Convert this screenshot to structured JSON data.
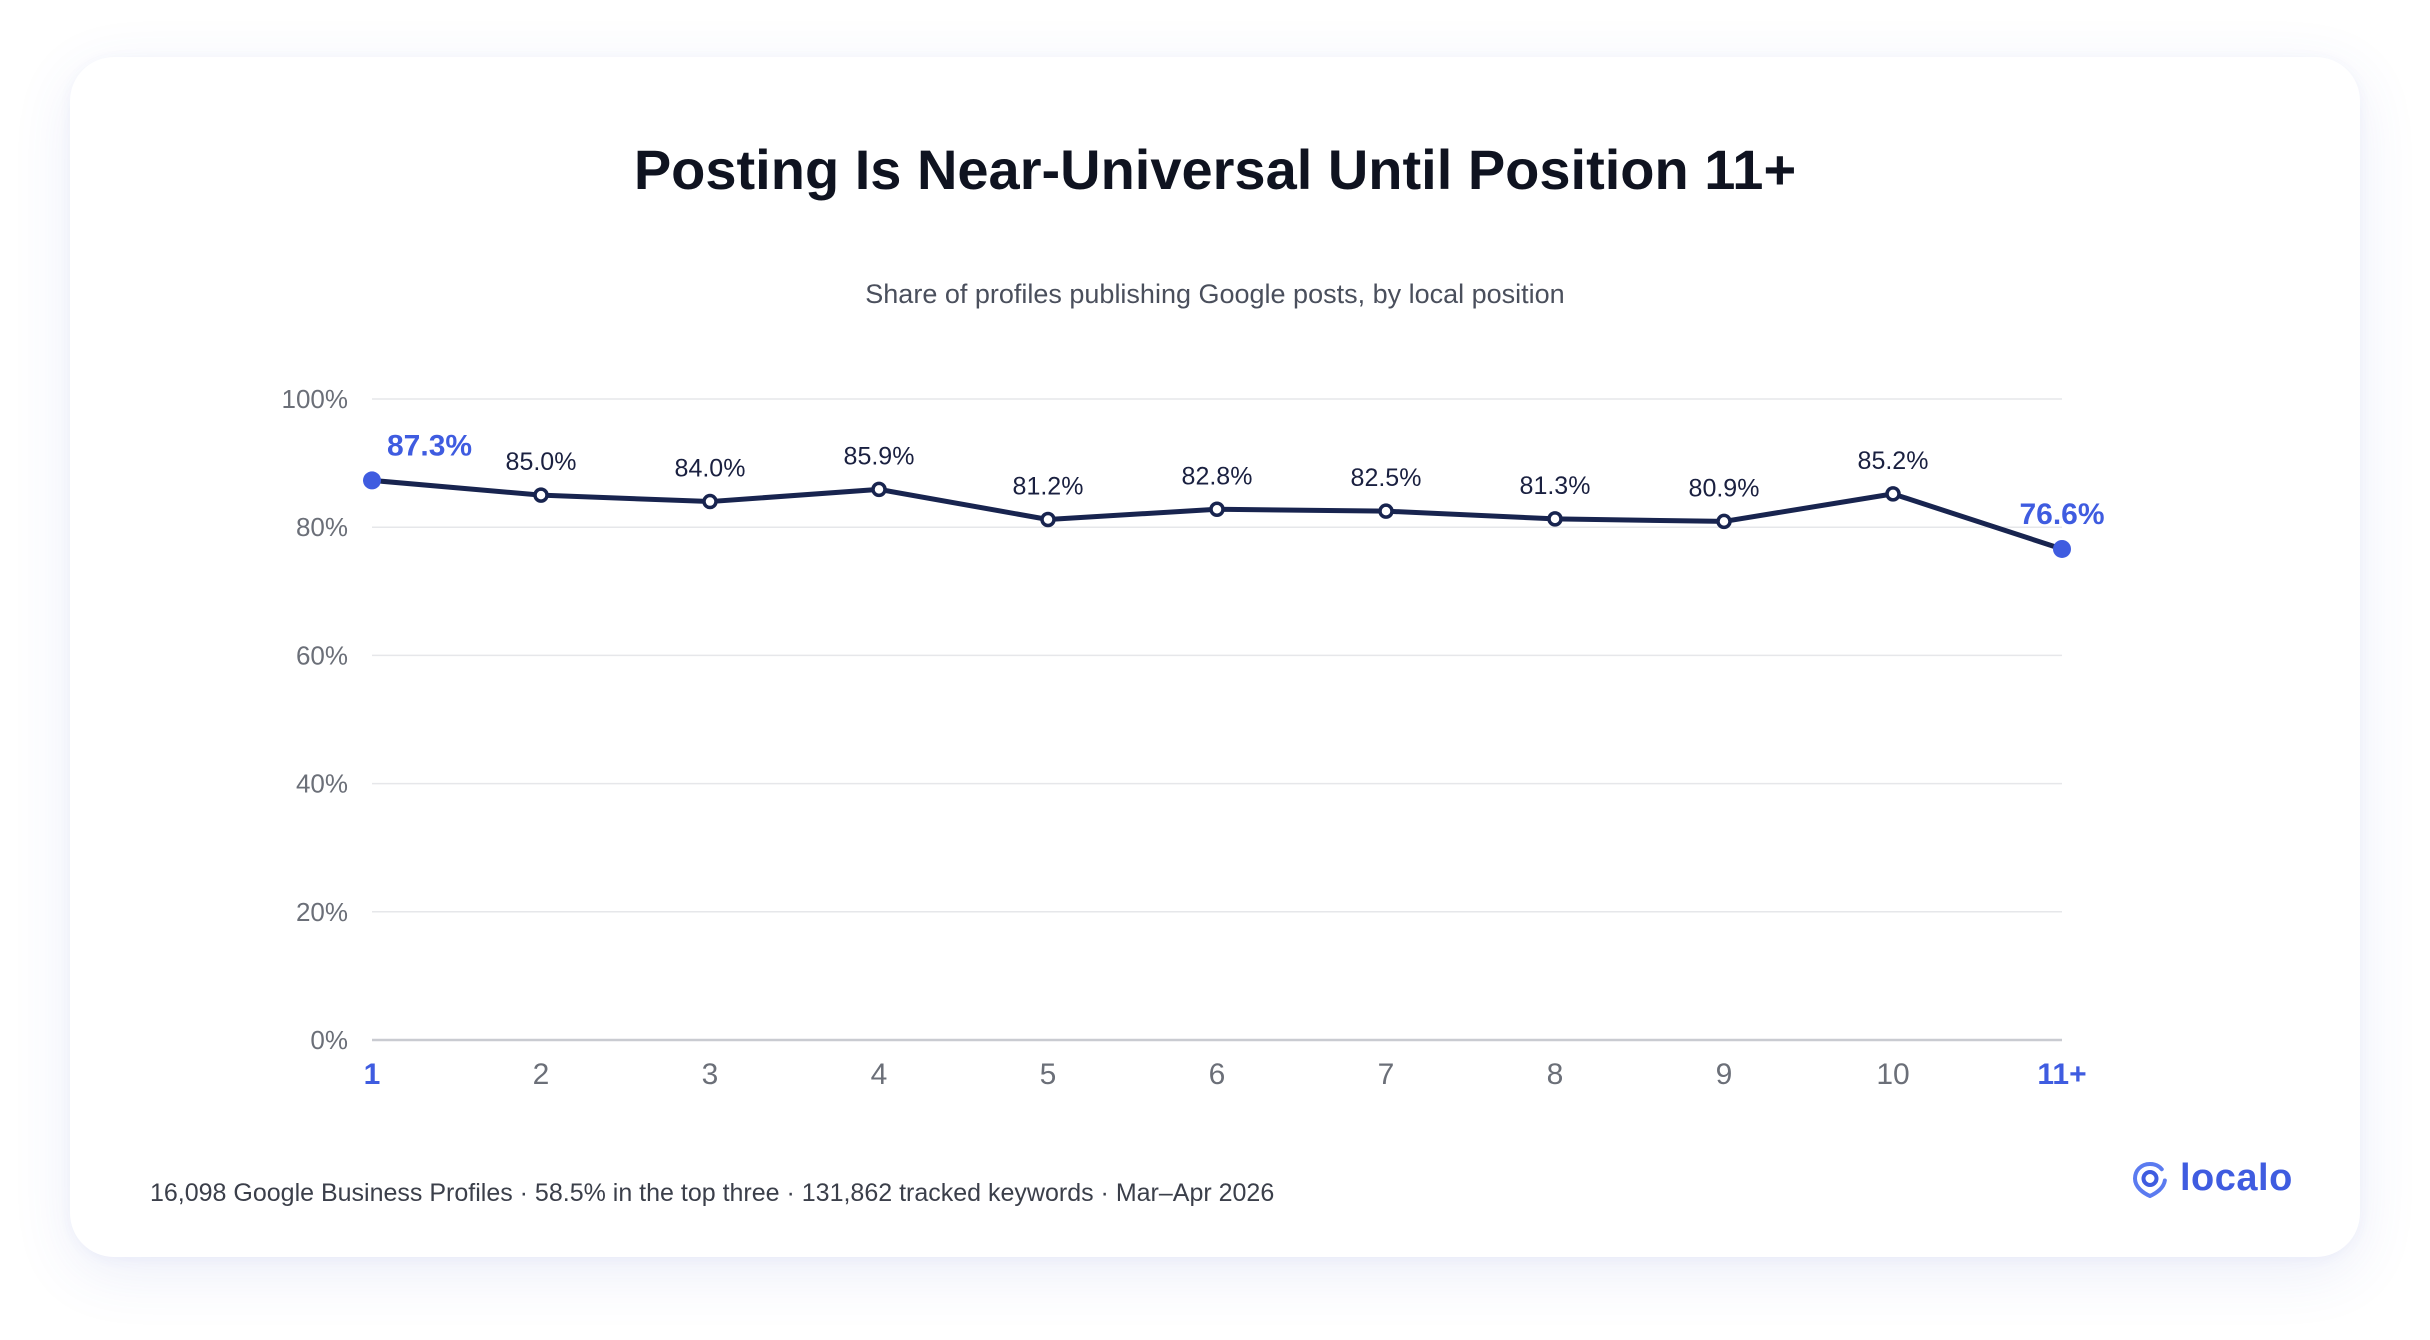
{
  "title": "Posting Is Near-Universal Until Position 11+",
  "subtitle": "Share of profiles publishing Google posts, by local position",
  "footer": "16,098 Google Business Profiles · 58.5% in the top three · 131,862 tracked keywords · Mar–Apr 2026",
  "logo": {
    "text": "localo",
    "icon": "location-pin-icon"
  },
  "colors": {
    "line": "#18244f",
    "accent": "#3f5ce0",
    "grid": "#e6e7ea",
    "axis": "#c9cbd1",
    "tick": "#6b6f78"
  },
  "chart_data": {
    "type": "line",
    "categories": [
      "1",
      "2",
      "3",
      "4",
      "5",
      "6",
      "7",
      "8",
      "9",
      "10",
      "11+"
    ],
    "values": [
      87.3,
      85.0,
      84.0,
      85.9,
      81.2,
      82.8,
      82.5,
      81.3,
      80.9,
      85.2,
      76.6
    ],
    "data_labels": [
      "87.3%",
      "85.0%",
      "84.0%",
      "85.9%",
      "81.2%",
      "82.8%",
      "82.5%",
      "81.3%",
      "80.9%",
      "85.2%",
      "76.6%"
    ],
    "highlighted": [
      "1",
      "11+"
    ],
    "ylim": [
      0,
      100
    ],
    "yticks": [
      0,
      20,
      40,
      60,
      80,
      100
    ],
    "ytick_labels": [
      "0%",
      "20%",
      "40%",
      "60%",
      "80%",
      "100%"
    ],
    "xlabel": "",
    "ylabel": "",
    "grid": true,
    "legend": "none"
  }
}
